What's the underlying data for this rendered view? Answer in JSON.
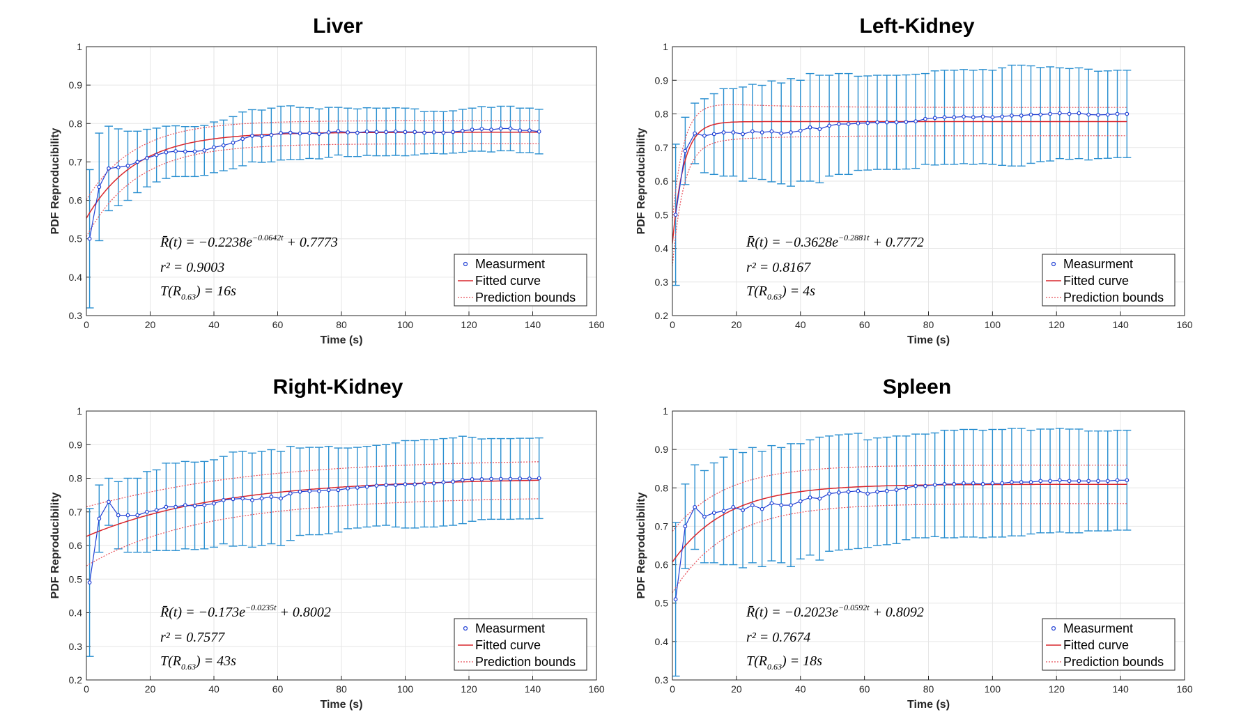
{
  "chart_data": [
    {
      "type": "line",
      "title": "Liver",
      "xlabel": "Time (s)",
      "ylabel": "PDF Reproducibility",
      "xlim": [
        0,
        160
      ],
      "ylim": [
        0.3,
        1
      ],
      "xticks": [
        0,
        20,
        40,
        60,
        80,
        100,
        120,
        140,
        160
      ],
      "yticks": [
        0.3,
        0.4,
        0.5,
        0.6,
        0.7,
        0.8,
        0.9,
        1
      ],
      "grid": true,
      "legend": {
        "placement": "bottom-right",
        "entries": [
          "Measurment",
          "Fitted curve",
          "Prediction bounds"
        ]
      },
      "fit": {
        "a": -0.2238,
        "b": -0.0642,
        "c": 0.7773,
        "bound_halfwidth": 0.03
      },
      "annotation": {
        "eq_prefix": "R̄(t) = −0.2238e",
        "eq_exp": "−0.0642t",
        "eq_suffix": " + 0.7773",
        "r2": "r² = 0.9003",
        "t_prefix": "T(R",
        "t_sub": "0.63",
        "t_suffix": ") = 16s"
      },
      "series": [
        {
          "name": "Measurment",
          "x": [
            1,
            4,
            7,
            10,
            13,
            16,
            19,
            22,
            25,
            28,
            31,
            34,
            37,
            40,
            43,
            46,
            49,
            52,
            55,
            58,
            61,
            64,
            67,
            70,
            73,
            76,
            79,
            82,
            85,
            88,
            91,
            94,
            97,
            100,
            103,
            106,
            109,
            112,
            115,
            118,
            121,
            124,
            127,
            130,
            133,
            136,
            139,
            142
          ],
          "y": [
            0.5,
            0.635,
            0.683,
            0.686,
            0.69,
            0.7,
            0.71,
            0.718,
            0.725,
            0.728,
            0.727,
            0.727,
            0.73,
            0.738,
            0.743,
            0.75,
            0.76,
            0.768,
            0.767,
            0.77,
            0.775,
            0.776,
            0.774,
            0.775,
            0.773,
            0.777,
            0.78,
            0.777,
            0.776,
            0.779,
            0.778,
            0.778,
            0.779,
            0.778,
            0.778,
            0.776,
            0.777,
            0.776,
            0.778,
            0.781,
            0.784,
            0.786,
            0.784,
            0.787,
            0.787,
            0.782,
            0.782,
            0.779
          ],
          "err": [
            0.18,
            0.14,
            0.11,
            0.1,
            0.09,
            0.08,
            0.075,
            0.07,
            0.068,
            0.066,
            0.065,
            0.065,
            0.065,
            0.066,
            0.066,
            0.068,
            0.07,
            0.068,
            0.068,
            0.07,
            0.07,
            0.07,
            0.068,
            0.066,
            0.065,
            0.065,
            0.062,
            0.063,
            0.062,
            0.062,
            0.062,
            0.062,
            0.062,
            0.062,
            0.06,
            0.055,
            0.055,
            0.055,
            0.055,
            0.056,
            0.056,
            0.058,
            0.058,
            0.058,
            0.058,
            0.058,
            0.058,
            0.058
          ]
        }
      ]
    },
    {
      "type": "line",
      "title": "Left-Kidney",
      "xlabel": "Time (s)",
      "ylabel": "PDF Reproducibility",
      "xlim": [
        0,
        160
      ],
      "ylim": [
        0.2,
        1
      ],
      "xticks": [
        0,
        20,
        40,
        60,
        80,
        100,
        120,
        140,
        160
      ],
      "yticks": [
        0.2,
        0.3,
        0.4,
        0.5,
        0.6,
        0.7,
        0.8,
        0.9,
        1
      ],
      "grid": true,
      "legend": {
        "placement": "bottom-right",
        "entries": [
          "Measurment",
          "Fitted curve",
          "Prediction bounds"
        ]
      },
      "fit": {
        "a": -0.3628,
        "b": -0.2881,
        "c": 0.7772,
        "bound_halfwidth": 0.042
      },
      "annotation": {
        "eq_prefix": "R̄(t) = −0.3628e",
        "eq_exp": "−0.2881t",
        "eq_suffix": " + 0.7772",
        "r2": "r² = 0.8167",
        "t_prefix": "T(R",
        "t_sub": "0.63",
        "t_suffix": ") = 4s"
      },
      "series": [
        {
          "name": "Measurment",
          "x": [
            1,
            4,
            7,
            10,
            13,
            16,
            19,
            22,
            25,
            28,
            31,
            34,
            37,
            40,
            43,
            46,
            49,
            52,
            55,
            58,
            61,
            64,
            67,
            70,
            73,
            76,
            79,
            82,
            85,
            88,
            91,
            94,
            97,
            100,
            103,
            106,
            109,
            112,
            115,
            118,
            121,
            124,
            127,
            130,
            133,
            136,
            139,
            142
          ],
          "y": [
            0.5,
            0.69,
            0.742,
            0.735,
            0.74,
            0.745,
            0.745,
            0.74,
            0.748,
            0.745,
            0.748,
            0.742,
            0.745,
            0.75,
            0.76,
            0.755,
            0.765,
            0.77,
            0.77,
            0.772,
            0.773,
            0.775,
            0.775,
            0.775,
            0.776,
            0.778,
            0.785,
            0.788,
            0.79,
            0.79,
            0.792,
            0.79,
            0.792,
            0.79,
            0.792,
            0.795,
            0.795,
            0.798,
            0.798,
            0.8,
            0.802,
            0.8,
            0.802,
            0.798,
            0.797,
            0.798,
            0.8,
            0.8
          ],
          "err": [
            0.21,
            0.1,
            0.09,
            0.11,
            0.12,
            0.13,
            0.13,
            0.14,
            0.14,
            0.14,
            0.15,
            0.15,
            0.16,
            0.15,
            0.16,
            0.16,
            0.15,
            0.15,
            0.15,
            0.14,
            0.14,
            0.14,
            0.14,
            0.14,
            0.14,
            0.14,
            0.135,
            0.14,
            0.14,
            0.14,
            0.14,
            0.14,
            0.14,
            0.14,
            0.145,
            0.15,
            0.15,
            0.145,
            0.14,
            0.14,
            0.135,
            0.135,
            0.135,
            0.135,
            0.13,
            0.13,
            0.13,
            0.13
          ]
        }
      ]
    },
    {
      "type": "line",
      "title": "Right-Kidney",
      "xlabel": "Time (s)",
      "ylabel": "PDF Reproducibility",
      "xlim": [
        0,
        160
      ],
      "ylim": [
        0.2,
        1
      ],
      "xticks": [
        0,
        20,
        40,
        60,
        80,
        100,
        120,
        140,
        160
      ],
      "yticks": [
        0.2,
        0.3,
        0.4,
        0.5,
        0.6,
        0.7,
        0.8,
        0.9,
        1
      ],
      "grid": true,
      "legend": {
        "placement": "bottom-right",
        "entries": [
          "Measurment",
          "Fitted curve",
          "Prediction bounds"
        ]
      },
      "fit": {
        "a": -0.173,
        "b": -0.0235,
        "c": 0.8002,
        "bound_halfwidth": 0.055
      },
      "annotation": {
        "eq_prefix": "R̄(t) = −0.173e",
        "eq_exp": "−0.0235t",
        "eq_suffix": " + 0.8002",
        "r2": "r² = 0.7577",
        "t_prefix": "T(R",
        "t_sub": "0.63",
        "t_suffix": ") = 43s"
      },
      "series": [
        {
          "name": "Measurment",
          "x": [
            1,
            4,
            7,
            10,
            13,
            16,
            19,
            22,
            25,
            28,
            31,
            34,
            37,
            40,
            43,
            46,
            49,
            52,
            55,
            58,
            61,
            64,
            67,
            70,
            73,
            76,
            79,
            82,
            85,
            88,
            91,
            94,
            97,
            100,
            103,
            106,
            109,
            112,
            115,
            118,
            121,
            124,
            127,
            130,
            133,
            136,
            139,
            142
          ],
          "y": [
            0.49,
            0.68,
            0.73,
            0.69,
            0.69,
            0.69,
            0.7,
            0.705,
            0.715,
            0.715,
            0.72,
            0.718,
            0.72,
            0.725,
            0.735,
            0.738,
            0.74,
            0.735,
            0.74,
            0.745,
            0.74,
            0.755,
            0.76,
            0.762,
            0.762,
            0.765,
            0.765,
            0.77,
            0.772,
            0.775,
            0.778,
            0.78,
            0.78,
            0.782,
            0.782,
            0.785,
            0.785,
            0.788,
            0.79,
            0.795,
            0.797,
            0.797,
            0.798,
            0.798,
            0.798,
            0.799,
            0.799,
            0.8
          ],
          "err": [
            0.22,
            0.1,
            0.07,
            0.1,
            0.11,
            0.11,
            0.12,
            0.12,
            0.13,
            0.13,
            0.13,
            0.13,
            0.13,
            0.13,
            0.13,
            0.14,
            0.14,
            0.14,
            0.14,
            0.14,
            0.14,
            0.14,
            0.13,
            0.13,
            0.13,
            0.13,
            0.125,
            0.12,
            0.12,
            0.12,
            0.12,
            0.12,
            0.125,
            0.13,
            0.13,
            0.13,
            0.13,
            0.13,
            0.13,
            0.13,
            0.125,
            0.12,
            0.12,
            0.12,
            0.12,
            0.12,
            0.12,
            0.12
          ]
        }
      ]
    },
    {
      "type": "line",
      "title": "Spleen",
      "xlabel": "Time (s)",
      "ylabel": "PDF Reproducibility",
      "xlim": [
        0,
        160
      ],
      "ylim": [
        0.3,
        1
      ],
      "xticks": [
        0,
        20,
        40,
        60,
        80,
        100,
        120,
        140,
        160
      ],
      "yticks": [
        0.3,
        0.4,
        0.5,
        0.6,
        0.7,
        0.8,
        0.9,
        1
      ],
      "grid": true,
      "legend": {
        "placement": "bottom-right",
        "entries": [
          "Measurment",
          "Fitted curve",
          "Prediction bounds"
        ]
      },
      "fit": {
        "a": -0.2023,
        "b": -0.0592,
        "c": 0.8092,
        "bound_halfwidth": 0.05
      },
      "annotation": {
        "eq_prefix": "R̄(t) = −0.2023e",
        "eq_exp": "−0.0592t",
        "eq_suffix": " + 0.8092",
        "r2": "r² = 0.7674",
        "t_prefix": "T(R",
        "t_sub": "0.63",
        "t_suffix": ") = 18s"
      },
      "series": [
        {
          "name": "Measurment",
          "x": [
            1,
            4,
            7,
            10,
            13,
            16,
            19,
            22,
            25,
            28,
            31,
            34,
            37,
            40,
            43,
            46,
            49,
            52,
            55,
            58,
            61,
            64,
            67,
            70,
            73,
            76,
            79,
            82,
            85,
            88,
            91,
            94,
            97,
            100,
            103,
            106,
            109,
            112,
            115,
            118,
            121,
            124,
            127,
            130,
            133,
            136,
            139,
            142
          ],
          "y": [
            0.51,
            0.7,
            0.75,
            0.725,
            0.735,
            0.74,
            0.75,
            0.742,
            0.755,
            0.745,
            0.76,
            0.755,
            0.755,
            0.765,
            0.775,
            0.772,
            0.785,
            0.788,
            0.79,
            0.792,
            0.785,
            0.79,
            0.792,
            0.795,
            0.8,
            0.805,
            0.805,
            0.808,
            0.81,
            0.81,
            0.812,
            0.812,
            0.81,
            0.812,
            0.812,
            0.815,
            0.815,
            0.815,
            0.818,
            0.818,
            0.82,
            0.818,
            0.818,
            0.818,
            0.818,
            0.818,
            0.82,
            0.82
          ],
          "err": [
            0.2,
            0.11,
            0.11,
            0.12,
            0.13,
            0.14,
            0.15,
            0.15,
            0.15,
            0.15,
            0.15,
            0.15,
            0.16,
            0.15,
            0.15,
            0.16,
            0.15,
            0.15,
            0.15,
            0.15,
            0.14,
            0.14,
            0.14,
            0.14,
            0.135,
            0.135,
            0.135,
            0.135,
            0.14,
            0.14,
            0.14,
            0.14,
            0.14,
            0.14,
            0.14,
            0.14,
            0.14,
            0.135,
            0.135,
            0.135,
            0.135,
            0.135,
            0.135,
            0.13,
            0.13,
            0.13,
            0.13,
            0.13
          ]
        }
      ]
    }
  ]
}
